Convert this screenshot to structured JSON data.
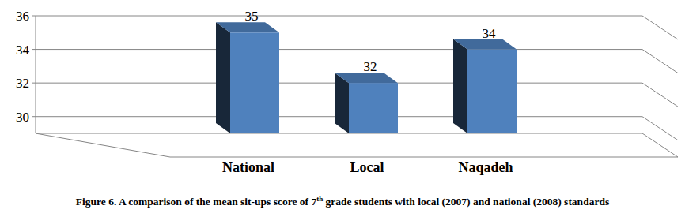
{
  "chart_data": {
    "type": "bar",
    "title": "Figure 6. A comparison of the mean sit-ups score of 7th grade students with local (2007) and national (2008) standards",
    "categories": [
      "National",
      "Local",
      "Naqadeh"
    ],
    "values": [
      35,
      32,
      34
    ],
    "color": "#4f81bd",
    "ylim": [
      29,
      36
    ],
    "yticks": [
      30,
      32,
      34,
      36
    ],
    "grid": true,
    "data_labels": true
  }
}
